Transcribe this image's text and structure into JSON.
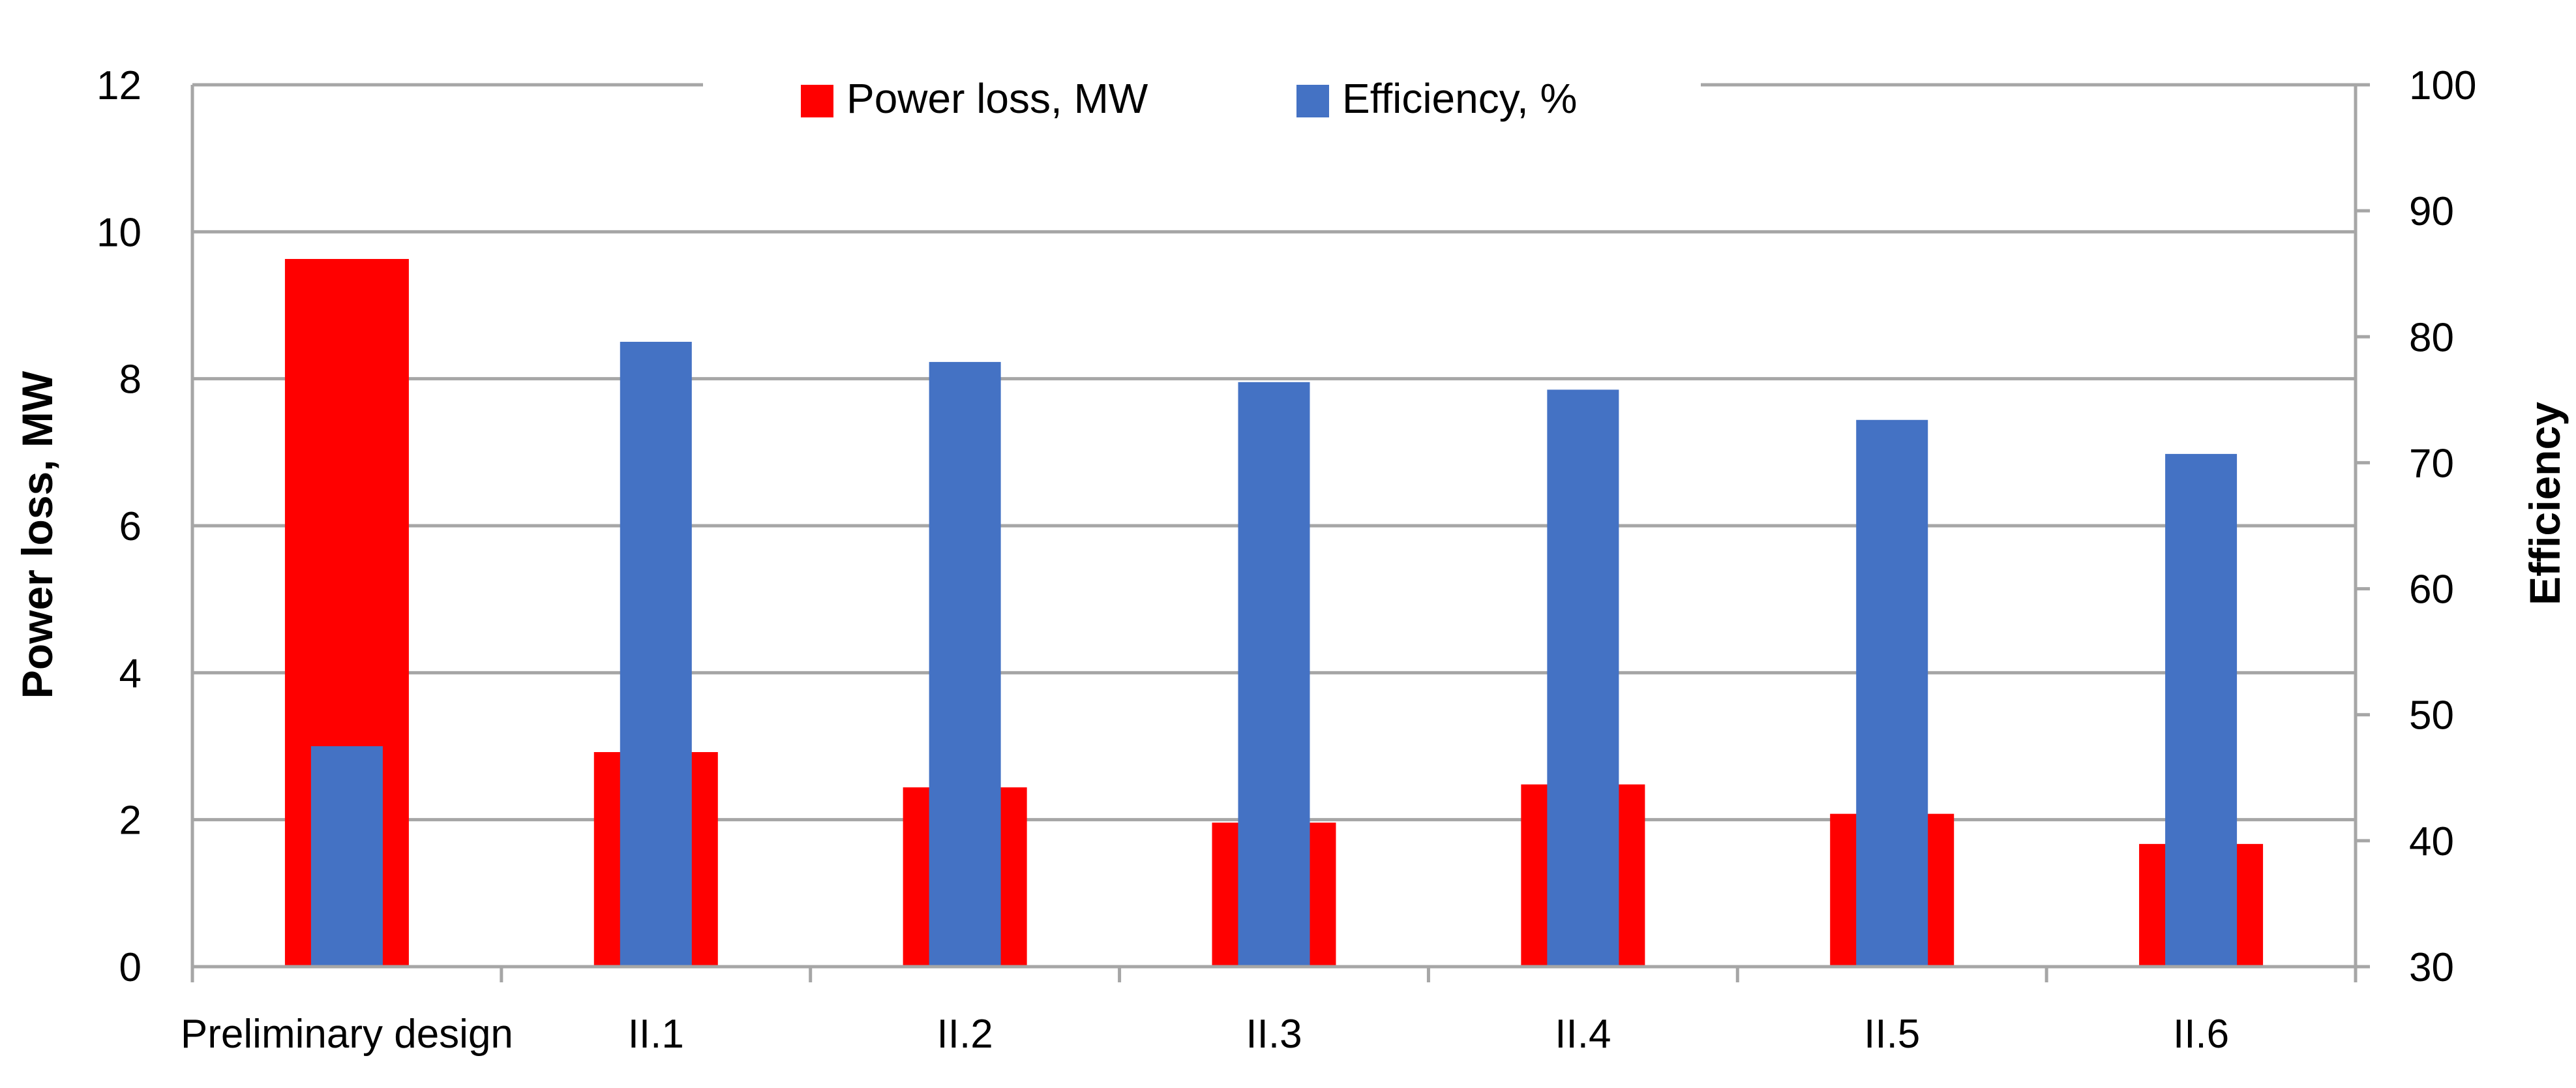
{
  "chart_data": {
    "type": "bar",
    "title": "",
    "categories": [
      "Preliminary design",
      "II.1",
      "II.2",
      "II.3",
      "II.4",
      "II.5",
      "II.6"
    ],
    "series": [
      {
        "name": "Power loss, MW",
        "axis": "left",
        "color": "#ff0000",
        "values": [
          9.63,
          2.92,
          2.44,
          1.96,
          2.48,
          2.08,
          1.67
        ]
      },
      {
        "name": "Efficiency, %",
        "axis": "right",
        "color": "#4472c4",
        "values": [
          47.5,
          79.6,
          78.0,
          76.4,
          75.8,
          73.4,
          70.7
        ]
      }
    ],
    "ylabel_left": "Power loss, MW",
    "ylabel_right": "Efficiency",
    "ylim_left": [
      0,
      12
    ],
    "yticks_left": [
      "0",
      "2",
      "4",
      "6",
      "8",
      "10",
      "12"
    ],
    "ylim_right": [
      30,
      100
    ],
    "yticks_right": [
      "30",
      "40",
      "50",
      "60",
      "70",
      "80",
      "90",
      "100"
    ],
    "grid": true,
    "legend_position": "top-center"
  }
}
